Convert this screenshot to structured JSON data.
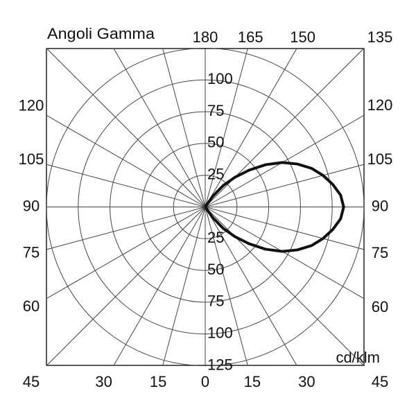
{
  "chart_data": {
    "type": "polar",
    "title": "Angoli Gamma",
    "unit_label": "cd/klm",
    "x": [
      30,
      35,
      40,
      45,
      50,
      55,
      60,
      65,
      70,
      75,
      80,
      85,
      90,
      95,
      100,
      105,
      110,
      115,
      120,
      125,
      130,
      135,
      140,
      145,
      150
    ],
    "values": [
      0,
      10,
      22,
      33,
      45,
      58,
      70,
      80,
      89,
      96,
      102,
      107,
      109,
      107,
      102,
      96,
      89,
      80,
      70,
      58,
      45,
      33,
      22,
      10,
      0
    ],
    "color": "#111111",
    "rlim": [
      0,
      125
    ],
    "rticks": [
      25,
      50,
      75,
      100,
      125
    ],
    "angle_ticks": [
      0,
      15,
      30,
      45,
      60,
      75,
      90,
      105,
      120,
      135,
      150,
      165,
      180
    ],
    "grid": true
  }
}
